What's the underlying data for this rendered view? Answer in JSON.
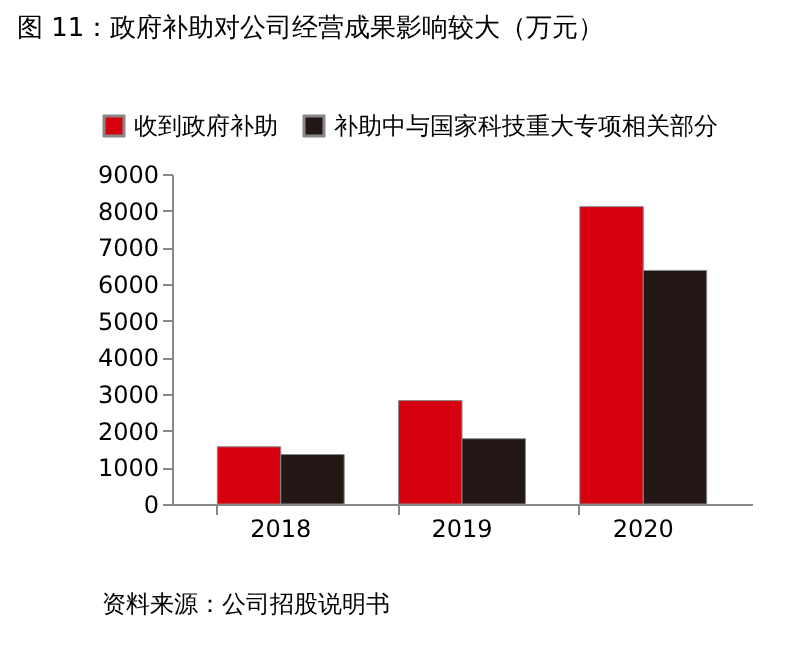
{
  "chart_data": {
    "type": "bar",
    "title": "图 11：政府补助对公司经营成果影响较大（万元）",
    "categories": [
      "2018",
      "2019",
      "2020"
    ],
    "series": [
      {
        "name": "收到政府补助",
        "color": "#d7000f",
        "values": [
          1560,
          2820,
          8110
        ]
      },
      {
        "name": "补助中与国家科技重大专项相关部分",
        "color": "#231815",
        "values": [
          1350,
          1780,
          6370
        ]
      }
    ],
    "ylim": [
      0,
      9000
    ],
    "yticks": [
      0,
      1000,
      2000,
      3000,
      4000,
      5000,
      6000,
      7000,
      8000,
      9000
    ],
    "grid": false,
    "legend": "top left",
    "annotations": [
      "资料来源：公司招股说明书"
    ]
  }
}
